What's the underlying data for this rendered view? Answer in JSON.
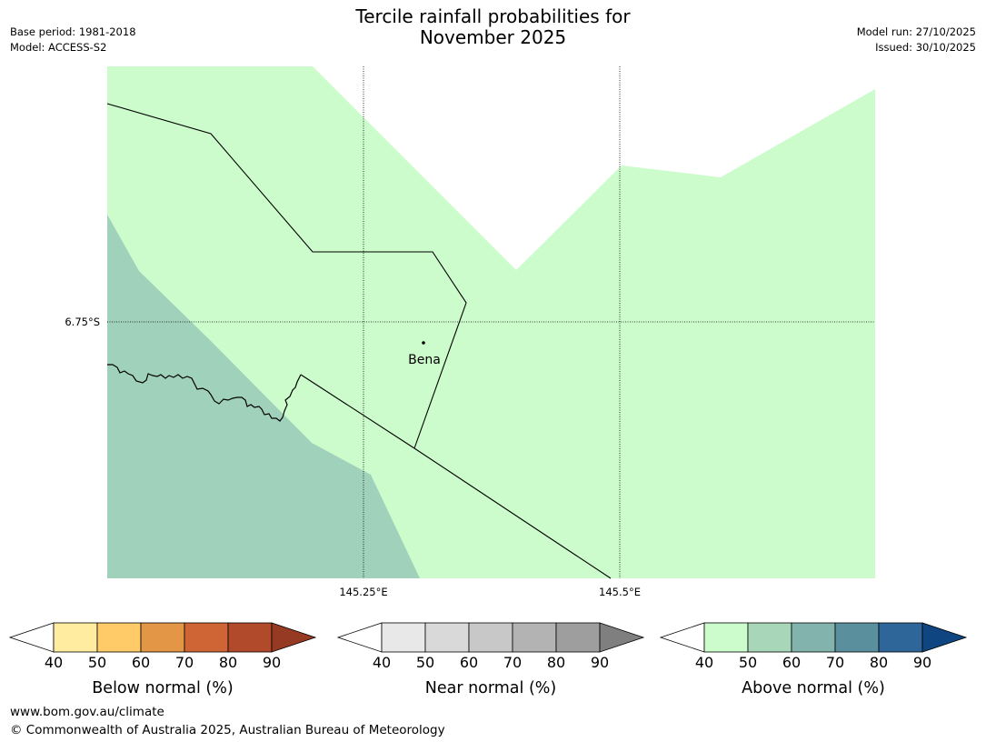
{
  "header": {
    "title_line1": "Tercile rainfall probabilities for",
    "title_line2": "November 2025",
    "base_period": "Base period: 1981-2018",
    "model": "Model: ACCESS-S2",
    "model_run": "Model run: 27/10/2025",
    "issued": "Issued: 30/10/2025"
  },
  "map": {
    "lat_label": "6.75°S",
    "lon_labels": [
      "145.25°E",
      "145.5°E"
    ],
    "place_label": "Bena",
    "colors": {
      "above_40_50": "#ccfccc",
      "above_50_60": "#a0d1bb",
      "background": "#ffffff",
      "lines": "#000000"
    }
  },
  "legends": [
    {
      "label": "Below normal (%)",
      "ticks": [
        "40",
        "50",
        "60",
        "70",
        "80",
        "90"
      ],
      "colors": [
        "#ffffff",
        "#ffeca0",
        "#ffcb68",
        "#e39646",
        "#cf6535",
        "#b04a2a",
        "#973a24"
      ]
    },
    {
      "label": "Near normal (%)",
      "ticks": [
        "40",
        "50",
        "60",
        "70",
        "80",
        "90"
      ],
      "colors": [
        "#ffffff",
        "#e8e8e8",
        "#d9d9d9",
        "#c8c8c8",
        "#b3b3b3",
        "#9e9e9e",
        "#7f7f7f"
      ]
    },
    {
      "label": "Above normal (%)",
      "ticks": [
        "40",
        "50",
        "60",
        "70",
        "80",
        "90"
      ],
      "colors": [
        "#ffffff",
        "#ccfccc",
        "#a8d6b8",
        "#82b4ad",
        "#5a8f9e",
        "#2f6699",
        "#0f4580"
      ]
    }
  ],
  "footer": {
    "url": "www.bom.gov.au/climate",
    "copyright": "© Commonwealth of Australia 2025, Australian Bureau of Meteorology"
  }
}
